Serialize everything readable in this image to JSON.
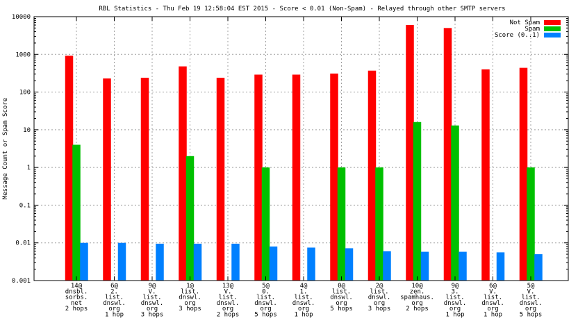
{
  "chart_data": {
    "type": "bar",
    "title": "RBL Statistics - Thu Feb 19 12:58:04 EST 2015 - Score < 0.01 (Non-Spam) - Relayed through other SMTP servers",
    "xlabel": "",
    "ylabel": "Message Count or Spam Score",
    "yscale": "log",
    "ylim": [
      0.001,
      10000
    ],
    "yticks": [
      "0.001",
      "0.01",
      "0.1",
      "1",
      "10",
      "100",
      "1000",
      "10000"
    ],
    "grid": true,
    "legend_position": "top-right",
    "categories": [
      [
        "14@",
        "dnsbl.",
        "sorbs.",
        "net",
        "2 hops"
      ],
      [
        "6@",
        "2.",
        "list.",
        "dnswl.",
        "org",
        "1 hop"
      ],
      [
        "9@",
        "V.",
        "list.",
        "dnswl.",
        "org",
        "3 hops"
      ],
      [
        "1@",
        "list.",
        "dnswl.",
        "org",
        "3 hops"
      ],
      [
        "13@",
        "V.",
        "list.",
        "dnswl.",
        "org",
        "2 hops"
      ],
      [
        "5@",
        "0.",
        "list.",
        "dnswl.",
        "org",
        "5 hops"
      ],
      [
        "4@",
        "1.",
        "list.",
        "dnswl.",
        "org",
        "1 hop"
      ],
      [
        "0@",
        "list.",
        "dnswl.",
        "org",
        "5 hops"
      ],
      [
        "2@",
        "list.",
        "dnswl.",
        "org",
        "3 hops"
      ],
      [
        "10@",
        "zen.",
        "spamhaus.",
        "org",
        "2 hops"
      ],
      [
        "9@",
        "3.",
        "list.",
        "dnswl.",
        "org",
        "1 hop"
      ],
      [
        "6@",
        "V.",
        "list.",
        "dnswl.",
        "org",
        "1 hop"
      ],
      [
        "5@",
        "V.",
        "list.",
        "dnswl.",
        "org",
        "5 hops"
      ]
    ],
    "series": [
      {
        "name": "Not Spam",
        "color": "#ff0000",
        "values": [
          920,
          230,
          240,
          480,
          240,
          290,
          290,
          310,
          370,
          6000,
          5000,
          400,
          440
        ]
      },
      {
        "name": "Spam",
        "color": "#00c000",
        "values": [
          4,
          null,
          null,
          2,
          null,
          1,
          null,
          1,
          1,
          16,
          13,
          null,
          1
        ]
      },
      {
        "name": "Score (0..1)",
        "color": "#0080ff",
        "values": [
          0.01,
          0.01,
          0.0095,
          0.0095,
          0.0095,
          0.008,
          0.0075,
          0.0072,
          0.006,
          0.0058,
          0.0058,
          0.0056,
          0.005
        ]
      }
    ]
  }
}
